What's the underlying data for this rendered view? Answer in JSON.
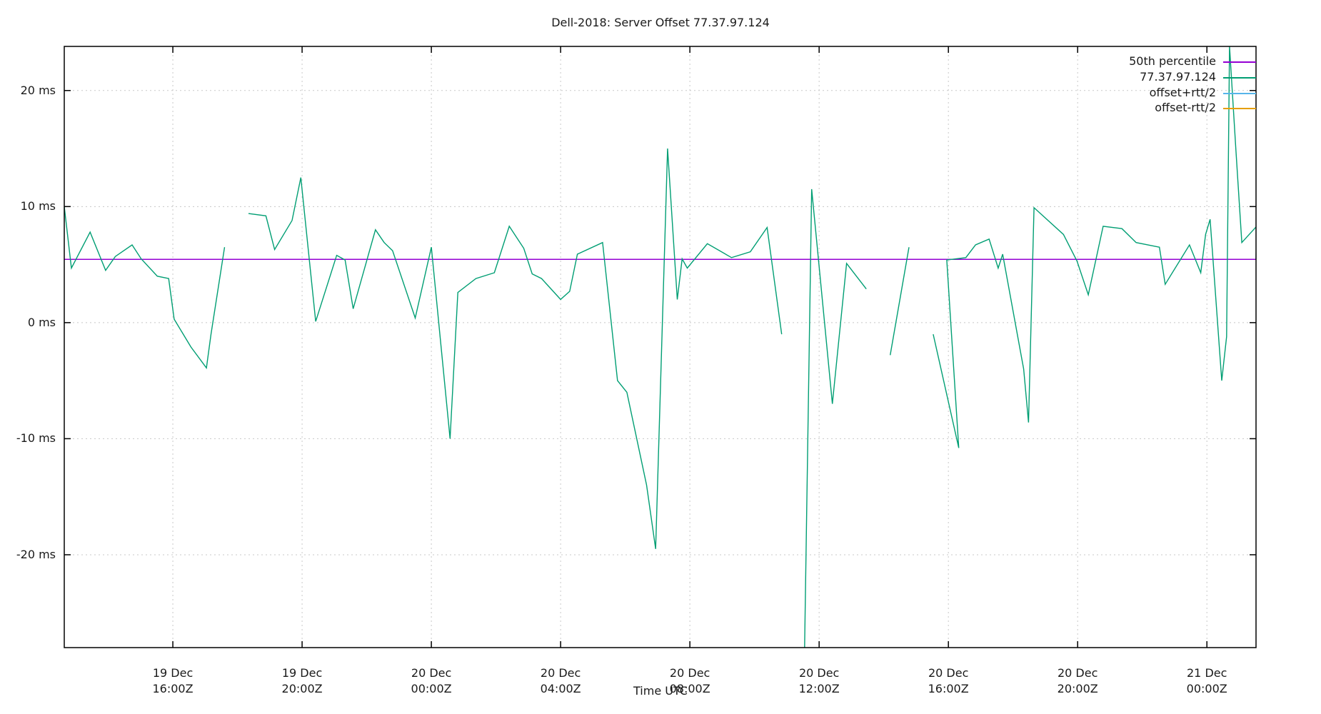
{
  "chart_data": {
    "type": "line",
    "title": "Dell-2018: Server Offset 77.37.97.124",
    "xlabel": "Time UTC",
    "ylabel": "",
    "ylim": [
      -28.0,
      23.8
    ],
    "xlim_hours_from_19Dec_16Z": [
      -3.36,
      33.52
    ],
    "grid": true,
    "legend_position": "top-right inside",
    "y_ticks": [
      {
        "value": 20,
        "label": "20 ms"
      },
      {
        "value": 10,
        "label": "10 ms"
      },
      {
        "value": 0,
        "label": "0 ms"
      },
      {
        "value": -10,
        "label": "-10 ms"
      },
      {
        "value": -20,
        "label": "-20 ms"
      }
    ],
    "x_ticks": [
      {
        "hours": 0,
        "label_date": "19 Dec",
        "label_time": "16:00Z"
      },
      {
        "hours": 4,
        "label_date": "19 Dec",
        "label_time": "20:00Z"
      },
      {
        "hours": 8,
        "label_date": "20 Dec",
        "label_time": "00:00Z"
      },
      {
        "hours": 12,
        "label_date": "20 Dec",
        "label_time": "04:00Z"
      },
      {
        "hours": 16,
        "label_date": "20 Dec",
        "label_time": "08:00Z"
      },
      {
        "hours": 20,
        "label_date": "20 Dec",
        "label_time": "12:00Z"
      },
      {
        "hours": 24,
        "label_date": "20 Dec",
        "label_time": "16:00Z"
      },
      {
        "hours": 28,
        "label_date": "20 Dec",
        "label_time": "20:00Z"
      },
      {
        "hours": 32,
        "label_date": "21 Dec",
        "label_time": "00:00Z"
      }
    ],
    "series": [
      {
        "name": "50th percentile",
        "color": "#9400d3",
        "constant": 5.45
      },
      {
        "name": "77.37.97.124",
        "color": "#009e73",
        "segments": [
          [
            [
              -3.36,
              10.0
            ],
            [
              -3.14,
              4.7
            ],
            [
              -2.56,
              7.8
            ],
            [
              -2.08,
              4.5
            ],
            [
              -1.78,
              5.7
            ],
            [
              -1.26,
              6.7
            ],
            [
              -0.98,
              5.5
            ],
            [
              -0.48,
              4.0
            ],
            [
              -0.13,
              3.8
            ],
            [
              0.04,
              0.3
            ],
            [
              0.56,
              -2.1
            ],
            [
              1.04,
              -3.9
            ],
            [
              1.18,
              -1.0
            ],
            [
              1.6,
              6.5
            ]
          ],
          [
            [
              2.34,
              9.4
            ],
            [
              2.88,
              9.2
            ],
            [
              3.15,
              6.3
            ],
            [
              3.69,
              8.8
            ],
            [
              3.96,
              12.5
            ],
            [
              4.42,
              0.1
            ],
            [
              5.07,
              5.8
            ],
            [
              5.33,
              5.4
            ],
            [
              5.58,
              1.2
            ],
            [
              6.27,
              8.0
            ],
            [
              6.54,
              6.9
            ],
            [
              6.8,
              6.2
            ],
            [
              7.5,
              0.4
            ],
            [
              8.0,
              6.5
            ],
            [
              8.58,
              -10.0
            ],
            [
              8.82,
              2.6
            ],
            [
              9.38,
              3.8
            ],
            [
              9.95,
              4.3
            ],
            [
              10.41,
              8.3
            ],
            [
              10.86,
              6.4
            ],
            [
              11.12,
              4.2
            ],
            [
              11.41,
              3.8
            ],
            [
              12.0,
              2.0
            ],
            [
              12.28,
              2.7
            ],
            [
              12.52,
              5.9
            ],
            [
              13.3,
              6.9
            ],
            [
              13.76,
              -5.0
            ],
            [
              14.05,
              -6.0
            ],
            [
              14.66,
              -14.0
            ],
            [
              14.94,
              -19.5
            ],
            [
              15.31,
              15.0
            ],
            [
              15.61,
              2.0
            ],
            [
              15.76,
              5.5
            ],
            [
              15.92,
              4.7
            ],
            [
              16.54,
              6.8
            ],
            [
              17.29,
              5.6
            ],
            [
              17.87,
              6.1
            ],
            [
              18.39,
              8.2
            ],
            [
              18.84,
              -1.0
            ]
          ],
          [
            [
              19.55,
              -28.0
            ],
            [
              19.77,
              11.5
            ],
            [
              20.41,
              -7.0
            ],
            [
              20.85,
              5.1
            ],
            [
              21.46,
              2.9
            ]
          ],
          [
            [
              22.2,
              -2.8
            ],
            [
              22.78,
              6.5
            ]
          ],
          [
            [
              23.53,
              -1.0
            ],
            [
              24.32,
              -10.8
            ],
            [
              23.95,
              5.4
            ],
            [
              24.54,
              5.6
            ],
            [
              24.84,
              6.7
            ],
            [
              25.26,
              7.2
            ],
            [
              25.54,
              4.7
            ],
            [
              25.68,
              5.9
            ],
            [
              26.33,
              -4.0
            ],
            [
              26.48,
              -8.6
            ],
            [
              26.65,
              9.9
            ],
            [
              27.56,
              7.6
            ],
            [
              27.98,
              5.3
            ],
            [
              28.33,
              2.4
            ],
            [
              28.79,
              8.3
            ],
            [
              29.37,
              8.1
            ],
            [
              29.81,
              6.9
            ],
            [
              30.53,
              6.5
            ],
            [
              30.71,
              3.3
            ],
            [
              31.46,
              6.7
            ],
            [
              31.81,
              4.3
            ],
            [
              31.96,
              7.6
            ],
            [
              32.1,
              8.9
            ],
            [
              32.46,
              -5.0
            ],
            [
              32.61,
              -1.2
            ],
            [
              32.7,
              23.8
            ],
            [
              32.9,
              14.8
            ],
            [
              33.08,
              6.9
            ],
            [
              33.54,
              8.3
            ],
            [
              33.52,
              5.5
            ]
          ]
        ]
      },
      {
        "name": "offset+rtt/2",
        "color": "#56b4e9",
        "segments": []
      },
      {
        "name": "offset-rtt/2",
        "color": "#e69f00",
        "segments": []
      }
    ]
  },
  "legend": [
    {
      "label": "50th percentile",
      "color": "#9400d3"
    },
    {
      "label": "77.37.97.124",
      "color": "#009e73"
    },
    {
      "label": "offset+rtt/2",
      "color": "#56b4e9"
    },
    {
      "label": "offset-rtt/2",
      "color": "#e69f00"
    }
  ]
}
